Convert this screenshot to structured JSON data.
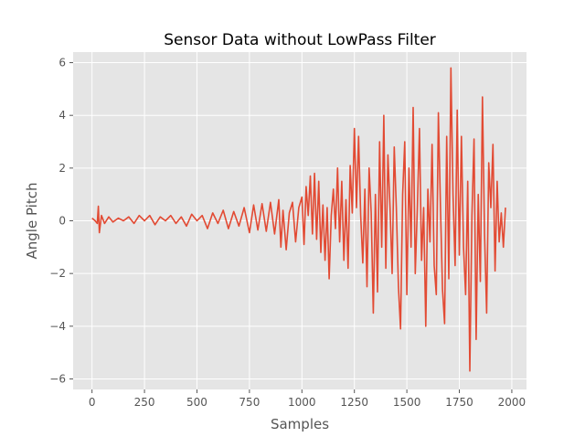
{
  "chart_data": {
    "type": "line",
    "title": "Sensor Data without LowPass Filter",
    "xlabel": "Samples",
    "ylabel": "Angle Pitch",
    "xlim": [
      -90,
      2070
    ],
    "ylim": [
      -6.4,
      6.4
    ],
    "xticks": [
      0,
      250,
      500,
      750,
      1000,
      1250,
      1500,
      1750,
      2000
    ],
    "xtick_labels": [
      "0",
      "250",
      "500",
      "750",
      "1000",
      "1250",
      "1500",
      "1750",
      "2000"
    ],
    "yticks": [
      -6,
      -4,
      -2,
      0,
      2,
      4,
      6
    ],
    "ytick_labels": [
      "−6",
      "−4",
      "−2",
      "0",
      "2",
      "4",
      "6"
    ],
    "grid": true,
    "legend": "none",
    "colors": {
      "background": "#e5e5e5",
      "grid": "#ffffff",
      "line": "#e24a33",
      "text": "#555555"
    },
    "series": [
      {
        "x": [
          0,
          15,
          25,
          30,
          35,
          45,
          60,
          80,
          100,
          125,
          150,
          175,
          200,
          225,
          250,
          275,
          300,
          325,
          350,
          375,
          400,
          425,
          450,
          475,
          500,
          525,
          550,
          575,
          600,
          625,
          650,
          675,
          700,
          725,
          750,
          770,
          790,
          810,
          830,
          850,
          870,
          890,
          900,
          910,
          925,
          940,
          955,
          970,
          985,
          1000,
          1010,
          1020,
          1030,
          1040,
          1050,
          1060,
          1070,
          1080,
          1090,
          1100,
          1110,
          1120,
          1130,
          1140,
          1150,
          1160,
          1170,
          1180,
          1190,
          1200,
          1210,
          1220,
          1230,
          1240,
          1250,
          1260,
          1270,
          1280,
          1290,
          1300,
          1310,
          1320,
          1330,
          1340,
          1350,
          1360,
          1370,
          1380,
          1390,
          1400,
          1410,
          1420,
          1430,
          1440,
          1450,
          1460,
          1470,
          1480,
          1490,
          1500,
          1510,
          1520,
          1530,
          1540,
          1550,
          1560,
          1570,
          1580,
          1590,
          1600,
          1610,
          1620,
          1630,
          1640,
          1650,
          1660,
          1670,
          1680,
          1690,
          1700,
          1710,
          1720,
          1730,
          1740,
          1750,
          1760,
          1770,
          1780,
          1790,
          1800,
          1810,
          1820,
          1830,
          1840,
          1850,
          1860,
          1870,
          1880,
          1890,
          1900,
          1910,
          1920,
          1930,
          1940,
          1950,
          1960,
          1970
        ],
        "y": [
          0.1,
          0.0,
          -0.1,
          0.55,
          -0.45,
          0.2,
          -0.1,
          0.15,
          -0.05,
          0.1,
          0.0,
          0.15,
          -0.1,
          0.2,
          0.0,
          0.2,
          -0.15,
          0.15,
          0.0,
          0.2,
          -0.1,
          0.15,
          -0.2,
          0.25,
          0.0,
          0.2,
          -0.3,
          0.3,
          -0.1,
          0.4,
          -0.3,
          0.35,
          -0.2,
          0.5,
          -0.45,
          0.6,
          -0.35,
          0.65,
          -0.4,
          0.7,
          -0.5,
          0.8,
          -1.0,
          0.4,
          -1.1,
          0.3,
          0.7,
          -0.8,
          0.5,
          0.9,
          -0.9,
          1.3,
          0.2,
          1.7,
          -0.5,
          1.8,
          -0.7,
          1.5,
          -1.2,
          0.6,
          -1.5,
          0.5,
          -2.2,
          0.2,
          1.2,
          -0.3,
          2.0,
          -0.8,
          1.5,
          -1.5,
          0.8,
          -1.8,
          2.1,
          0.3,
          3.5,
          0.5,
          3.2,
          0.2,
          -1.6,
          1.2,
          -2.5,
          2.0,
          0.3,
          -3.5,
          1.0,
          -2.7,
          3.0,
          -1.0,
          4.0,
          -1.8,
          2.5,
          0.5,
          -2.0,
          2.8,
          0.5,
          -2.5,
          -4.1,
          1.0,
          3.0,
          -2.8,
          2.0,
          -1.0,
          4.3,
          -2.0,
          0.5,
          3.5,
          -1.5,
          0.5,
          -4.0,
          1.2,
          -0.8,
          2.9,
          -1.7,
          -2.8,
          4.1,
          0.5,
          -2.6,
          -3.9,
          3.2,
          -2.2,
          5.8,
          1.0,
          -1.7,
          4.2,
          -1.3,
          3.2,
          -1.0,
          -2.8,
          1.5,
          -5.7,
          0.2,
          3.1,
          -4.5,
          1.0,
          -2.3,
          4.7,
          -0.5,
          -3.5,
          2.2,
          0.5,
          2.9,
          -1.9,
          1.5,
          -0.8,
          0.3,
          -1.0,
          0.5
        ]
      }
    ]
  }
}
